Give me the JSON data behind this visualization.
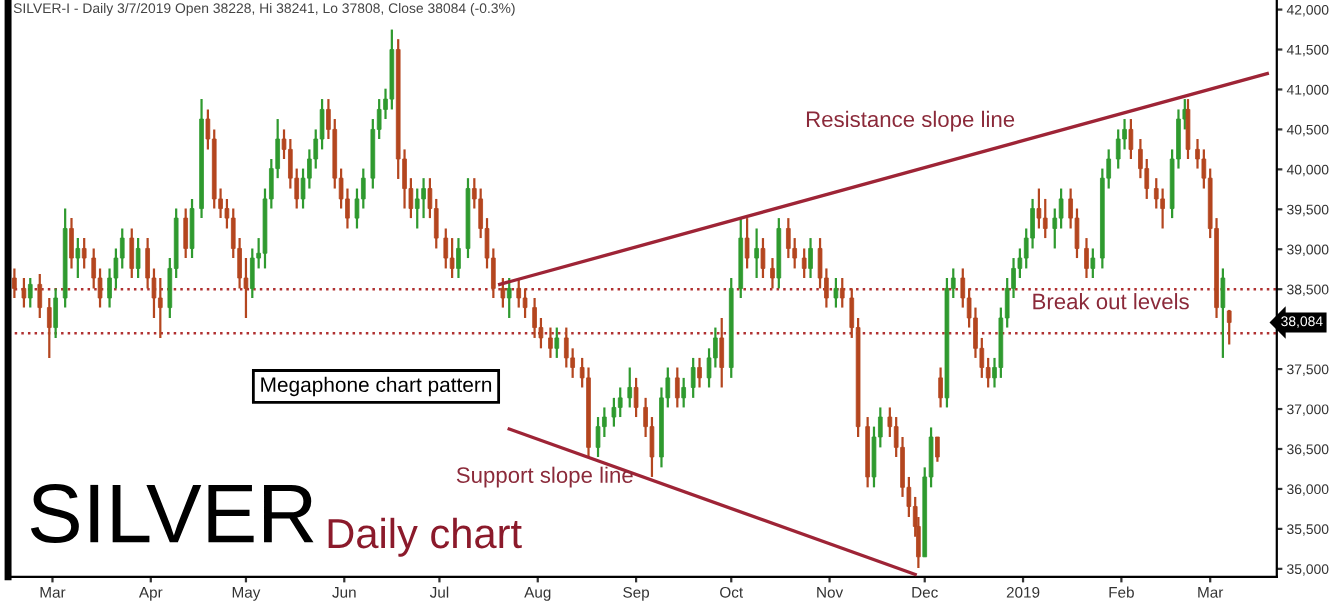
{
  "chart_data": {
    "type": "candlestick",
    "title": "SILVER",
    "subtitle": "Daily chart",
    "x": [
      "2018-02-17",
      "2018-02-20",
      "2018-02-22",
      "2018-02-25",
      "2018-02-28",
      "2018-03-02",
      "2018-03-05",
      "2018-03-07",
      "2018-03-09",
      "2018-03-11",
      "2018-03-14",
      "2018-03-16",
      "2018-03-19",
      "2018-03-21",
      "2018-03-23",
      "2018-03-26",
      "2018-03-28",
      "2018-03-31",
      "2018-04-02",
      "2018-04-04",
      "2018-04-07",
      "2018-04-09",
      "2018-04-12",
      "2018-04-14",
      "2018-04-17",
      "2018-04-19",
      "2018-04-21",
      "2018-04-23",
      "2018-04-25",
      "2018-04-27",
      "2018-04-29",
      "2018-05-01",
      "2018-05-03",
      "2018-05-05",
      "2018-05-07",
      "2018-05-09",
      "2018-05-11",
      "2018-05-13",
      "2018-05-15",
      "2018-05-17",
      "2018-05-19",
      "2018-05-21",
      "2018-05-23",
      "2018-05-25",
      "2018-05-27",
      "2018-05-29",
      "2018-05-31",
      "2018-06-02",
      "2018-06-05",
      "2018-06-07",
      "2018-06-10",
      "2018-06-12",
      "2018-06-14",
      "2018-06-16",
      "2018-06-18",
      "2018-06-20",
      "2018-06-22",
      "2018-06-24",
      "2018-06-26",
      "2018-06-28",
      "2018-06-30",
      "2018-07-03",
      "2018-07-05",
      "2018-07-07",
      "2018-07-10",
      "2018-07-12",
      "2018-07-14",
      "2018-07-16",
      "2018-07-18",
      "2018-07-21",
      "2018-07-23",
      "2018-07-26",
      "2018-07-28",
      "2018-07-31",
      "2018-08-02",
      "2018-08-05",
      "2018-08-07",
      "2018-08-10",
      "2018-08-12",
      "2018-08-15",
      "2018-08-17",
      "2018-08-20",
      "2018-08-22",
      "2018-08-25",
      "2018-08-27",
      "2018-08-30",
      "2018-09-01",
      "2018-09-04",
      "2018-09-06",
      "2018-09-09",
      "2018-09-11",
      "2018-09-14",
      "2018-09-16",
      "2018-09-19",
      "2018-09-21",
      "2018-09-24",
      "2018-09-26",
      "2018-09-28",
      "2018-10-01",
      "2018-10-04",
      "2018-10-06",
      "2018-10-09",
      "2018-10-11",
      "2018-10-14",
      "2018-10-16",
      "2018-10-19",
      "2018-10-21",
      "2018-10-24",
      "2018-10-26",
      "2018-10-29",
      "2018-10-31",
      "2018-11-03",
      "2018-11-05",
      "2018-11-08",
      "2018-11-10",
      "2018-11-13",
      "2018-11-15",
      "2018-11-17",
      "2018-11-20",
      "2018-11-22",
      "2018-11-24",
      "2018-11-26",
      "2018-11-28",
      "2018-11-29",
      "2018-12-01",
      "2018-12-03",
      "2018-12-05",
      "2018-12-06",
      "2018-12-08",
      "2018-12-10",
      "2018-12-13",
      "2018-12-15",
      "2018-12-17",
      "2018-12-19",
      "2018-12-21",
      "2018-12-23",
      "2018-12-25",
      "2018-12-27",
      "2018-12-29",
      "2018-12-31",
      "2019-01-02",
      "2019-01-04",
      "2019-01-06",
      "2019-01-08",
      "2019-01-11",
      "2019-01-13",
      "2019-01-16",
      "2019-01-18",
      "2019-01-21",
      "2019-01-23",
      "2019-01-26",
      "2019-01-28",
      "2019-01-31",
      "2019-02-02",
      "2019-02-04",
      "2019-02-07",
      "2019-02-09",
      "2019-02-12",
      "2019-02-14",
      "2019-02-17",
      "2019-02-19",
      "2019-02-21",
      "2019-02-22",
      "2019-02-25",
      "2019-02-27",
      "2019-03-01",
      "2019-03-03",
      "2019-03-05",
      "2019-03-07"
    ],
    "ohlc": [
      [
        38640,
        38760,
        38390,
        38510
      ],
      [
        38510,
        38640,
        38270,
        38390
      ],
      [
        38390,
        38640,
        38270,
        38560
      ],
      [
        38560,
        38690,
        38140,
        38270
      ],
      [
        38270,
        38390,
        37640,
        38020
      ],
      [
        38020,
        38510,
        37890,
        38390
      ],
      [
        38390,
        39510,
        38270,
        39260
      ],
      [
        39260,
        39390,
        38760,
        38890
      ],
      [
        38890,
        39140,
        38640,
        39010
      ],
      [
        39010,
        39140,
        38760,
        38890
      ],
      [
        38890,
        39010,
        38510,
        38640
      ],
      [
        38640,
        38760,
        38270,
        38390
      ],
      [
        38390,
        38760,
        38270,
        38640
      ],
      [
        38640,
        39010,
        38510,
        38890
      ],
      [
        38890,
        39260,
        38760,
        39140
      ],
      [
        39140,
        39260,
        38640,
        38760
      ],
      [
        38760,
        39140,
        38640,
        39010
      ],
      [
        39010,
        39140,
        38510,
        38640
      ],
      [
        38640,
        38760,
        38140,
        38390
      ],
      [
        38390,
        38640,
        37890,
        38270
      ],
      [
        38270,
        38890,
        38140,
        38760
      ],
      [
        38760,
        39510,
        38640,
        39390
      ],
      [
        39390,
        39510,
        38890,
        39010
      ],
      [
        39010,
        39630,
        38890,
        39510
      ],
      [
        39510,
        40880,
        39390,
        40630
      ],
      [
        40630,
        40750,
        40250,
        40380
      ],
      [
        40380,
        40500,
        39510,
        39630
      ],
      [
        39630,
        39760,
        39390,
        39510
      ],
      [
        39510,
        39630,
        39260,
        39390
      ],
      [
        39390,
        39510,
        38890,
        39010
      ],
      [
        39010,
        39140,
        38510,
        38640
      ],
      [
        38640,
        38890,
        38140,
        38510
      ],
      [
        38510,
        39010,
        38390,
        38890
      ],
      [
        38890,
        39140,
        38760,
        38950
      ],
      [
        38950,
        39760,
        38760,
        39630
      ],
      [
        39630,
        40130,
        39510,
        40010
      ],
      [
        40010,
        40630,
        39890,
        40380
      ],
      [
        40380,
        40500,
        40130,
        40250
      ],
      [
        40250,
        40380,
        39760,
        39890
      ],
      [
        39890,
        40010,
        39510,
        39630
      ],
      [
        39630,
        40010,
        39510,
        39890
      ],
      [
        39890,
        40250,
        39760,
        40130
      ],
      [
        40130,
        40500,
        40010,
        40380
      ],
      [
        40380,
        40880,
        40250,
        40750
      ],
      [
        40750,
        40880,
        40380,
        40500
      ],
      [
        40500,
        40630,
        39760,
        39890
      ],
      [
        39890,
        40010,
        39510,
        39630
      ],
      [
        39630,
        39760,
        39260,
        39390
      ],
      [
        39390,
        39760,
        39260,
        39630
      ],
      [
        39630,
        40010,
        39510,
        39890
      ],
      [
        39890,
        40630,
        39760,
        40500
      ],
      [
        40500,
        40880,
        40380,
        40750
      ],
      [
        40750,
        41010,
        40630,
        40880
      ],
      [
        40880,
        41750,
        40750,
        41500
      ],
      [
        41500,
        41630,
        39880,
        40130
      ],
      [
        40130,
        40250,
        39510,
        39760
      ],
      [
        39760,
        39890,
        39390,
        39510
      ],
      [
        39510,
        39760,
        39260,
        39630
      ],
      [
        39630,
        39890,
        39390,
        39760
      ],
      [
        39760,
        39890,
        39390,
        39510
      ],
      [
        39510,
        39630,
        39010,
        39140
      ],
      [
        39140,
        39260,
        38760,
        38890
      ],
      [
        38890,
        39140,
        38640,
        38760
      ],
      [
        38760,
        39140,
        38640,
        39010
      ],
      [
        39010,
        39890,
        38890,
        39760
      ],
      [
        39760,
        39890,
        39510,
        39630
      ],
      [
        39630,
        39760,
        39140,
        39260
      ],
      [
        39260,
        39390,
        38760,
        38890
      ],
      [
        38890,
        39010,
        38390,
        38510
      ],
      [
        38510,
        38640,
        38270,
        38390
      ],
      [
        38390,
        38640,
        38140,
        38510
      ],
      [
        38510,
        38640,
        38270,
        38390
      ],
      [
        38390,
        38510,
        38140,
        38270
      ],
      [
        38270,
        38390,
        37890,
        38020
      ],
      [
        38020,
        38140,
        37760,
        37890
      ],
      [
        37890,
        38020,
        37640,
        37760
      ],
      [
        37760,
        38020,
        37640,
        37890
      ],
      [
        37890,
        38020,
        37520,
        37640
      ],
      [
        37640,
        37760,
        37390,
        37520
      ],
      [
        37520,
        37640,
        37270,
        37390
      ],
      [
        37390,
        37520,
        36400,
        36520
      ],
      [
        36520,
        36900,
        36400,
        36780
      ],
      [
        36780,
        37020,
        36650,
        36900
      ],
      [
        36900,
        37140,
        36780,
        37020
      ],
      [
        37020,
        37270,
        36900,
        37140
      ],
      [
        37140,
        37520,
        37020,
        37270
      ],
      [
        37270,
        37390,
        36900,
        37020
      ],
      [
        37020,
        37140,
        36650,
        36780
      ],
      [
        36780,
        36900,
        36150,
        36400
      ],
      [
        36400,
        37270,
        36270,
        37140
      ],
      [
        37140,
        37520,
        37020,
        37390
      ],
      [
        37390,
        37520,
        37020,
        37140
      ],
      [
        37140,
        37390,
        37020,
        37270
      ],
      [
        37270,
        37640,
        37140,
        37520
      ],
      [
        37520,
        37640,
        37270,
        37390
      ],
      [
        37390,
        37760,
        37270,
        37640
      ],
      [
        37640,
        38020,
        37520,
        37890
      ],
      [
        37890,
        38140,
        37270,
        37520
      ],
      [
        37520,
        38640,
        37390,
        38510
      ],
      [
        38510,
        39390,
        38390,
        39140
      ],
      [
        39140,
        39390,
        38760,
        38890
      ],
      [
        38890,
        39260,
        38640,
        39010
      ],
      [
        39010,
        39140,
        38640,
        38760
      ],
      [
        38760,
        38890,
        38510,
        38640
      ],
      [
        38640,
        39390,
        38510,
        39260
      ],
      [
        39260,
        39390,
        38890,
        39010
      ],
      [
        39010,
        39140,
        38760,
        38890
      ],
      [
        38890,
        39010,
        38640,
        38760
      ],
      [
        38760,
        39140,
        38640,
        39010
      ],
      [
        39010,
        39140,
        38510,
        38640
      ],
      [
        38640,
        38760,
        38270,
        38390
      ],
      [
        38390,
        38640,
        38270,
        38510
      ],
      [
        38510,
        38640,
        38270,
        38390
      ],
      [
        38390,
        38510,
        37890,
        38020
      ],
      [
        38020,
        38140,
        36650,
        36780
      ],
      [
        36780,
        36900,
        36020,
        36150
      ],
      [
        36150,
        36780,
        36020,
        36650
      ],
      [
        36650,
        37020,
        36520,
        36900
      ],
      [
        36900,
        37020,
        36650,
        36780
      ],
      [
        36780,
        36900,
        36400,
        36520
      ],
      [
        36520,
        36650,
        35900,
        36020
      ],
      [
        36020,
        36150,
        35650,
        35780
      ],
      [
        35780,
        35900,
        35400,
        35530
      ],
      [
        35530,
        35650,
        35010,
        35150
      ],
      [
        35150,
        36270,
        35150,
        36150
      ],
      [
        36150,
        36770,
        36020,
        36650
      ],
      [
        36650,
        36650,
        36340,
        36400
      ],
      [
        37390,
        37520,
        37020,
        37140
      ],
      [
        37140,
        38640,
        37020,
        38510
      ],
      [
        38510,
        38760,
        38390,
        38640
      ],
      [
        38640,
        38760,
        38270,
        38390
      ],
      [
        38390,
        38510,
        38020,
        38140
      ],
      [
        38140,
        38270,
        37640,
        37760
      ],
      [
        37760,
        37890,
        37390,
        37520
      ],
      [
        37520,
        37640,
        37270,
        37390
      ],
      [
        37390,
        37640,
        37270,
        37520
      ],
      [
        37520,
        38270,
        37390,
        38140
      ],
      [
        38140,
        38640,
        38020,
        38510
      ],
      [
        38510,
        38890,
        38390,
        38760
      ],
      [
        38760,
        39010,
        38640,
        38890
      ],
      [
        38890,
        39260,
        38760,
        39140
      ],
      [
        39140,
        39630,
        39010,
        39510
      ],
      [
        39510,
        39760,
        39260,
        39390
      ],
      [
        39390,
        39630,
        39140,
        39260
      ],
      [
        39260,
        39510,
        39010,
        39390
      ],
      [
        39390,
        39760,
        39260,
        39630
      ],
      [
        39630,
        39760,
        39260,
        39390
      ],
      [
        39390,
        39510,
        38890,
        39010
      ],
      [
        39010,
        39140,
        38640,
        38760
      ],
      [
        38760,
        39010,
        38640,
        38890
      ],
      [
        38890,
        40010,
        38760,
        39890
      ],
      [
        39890,
        40250,
        39760,
        40130
      ],
      [
        40130,
        40500,
        40010,
        40380
      ],
      [
        40380,
        40630,
        40250,
        40500
      ],
      [
        40500,
        40630,
        40130,
        40250
      ],
      [
        40250,
        40380,
        39890,
        40010
      ],
      [
        40010,
        40130,
        39630,
        39760
      ],
      [
        39760,
        39890,
        39510,
        39630
      ],
      [
        39630,
        39760,
        39260,
        39510
      ],
      [
        39510,
        40250,
        39390,
        40130
      ],
      [
        40130,
        40750,
        40010,
        40630
      ],
      [
        40630,
        40880,
        40500,
        40750
      ],
      [
        40750,
        40880,
        40130,
        40250
      ],
      [
        40250,
        40380,
        40010,
        40130
      ],
      [
        40130,
        40250,
        39760,
        39890
      ],
      [
        39890,
        40010,
        39140,
        39260
      ],
      [
        39260,
        39390,
        38140,
        38270
      ],
      [
        38270,
        38760,
        37640,
        38640
      ],
      [
        38228,
        38241,
        37808,
        38084
      ]
    ],
    "colors": [
      "#b4461f",
      "#b4461f",
      "#2f9a2f",
      "#b4461f",
      "#b4461f",
      "#2f9a2f",
      "#2f9a2f",
      "#b4461f",
      "#2f9a2f",
      "#b4461f",
      "#b4461f",
      "#b4461f",
      "#2f9a2f",
      "#2f9a2f",
      "#2f9a2f",
      "#b4461f",
      "#2f9a2f",
      "#b4461f",
      "#b4461f",
      "#b4461f",
      "#2f9a2f",
      "#2f9a2f",
      "#b4461f",
      "#2f9a2f",
      "#2f9a2f",
      "#b4461f",
      "#b4461f",
      "#b4461f",
      "#b4461f",
      "#b4461f",
      "#b4461f",
      "#b4461f",
      "#2f9a2f",
      "#2f9a2f",
      "#2f9a2f",
      "#2f9a2f",
      "#2f9a2f",
      "#b4461f",
      "#b4461f",
      "#b4461f",
      "#2f9a2f",
      "#2f9a2f",
      "#2f9a2f",
      "#2f9a2f",
      "#b4461f",
      "#b4461f",
      "#b4461f",
      "#b4461f",
      "#2f9a2f",
      "#2f9a2f",
      "#2f9a2f",
      "#2f9a2f",
      "#2f9a2f",
      "#2f9a2f",
      "#b4461f",
      "#b4461f",
      "#b4461f",
      "#2f9a2f",
      "#2f9a2f",
      "#b4461f",
      "#b4461f",
      "#b4461f",
      "#b4461f",
      "#2f9a2f",
      "#2f9a2f",
      "#b4461f",
      "#b4461f",
      "#b4461f",
      "#b4461f",
      "#b4461f",
      "#2f9a2f",
      "#b4461f",
      "#b4461f",
      "#b4461f",
      "#b4461f",
      "#b4461f",
      "#2f9a2f",
      "#b4461f",
      "#b4461f",
      "#b4461f",
      "#b4461f",
      "#2f9a2f",
      "#2f9a2f",
      "#2f9a2f",
      "#2f9a2f",
      "#2f9a2f",
      "#b4461f",
      "#b4461f",
      "#b4461f",
      "#2f9a2f",
      "#2f9a2f",
      "#b4461f",
      "#2f9a2f",
      "#2f9a2f",
      "#b4461f",
      "#2f9a2f",
      "#2f9a2f",
      "#b4461f",
      "#2f9a2f",
      "#2f9a2f",
      "#b4461f",
      "#2f9a2f",
      "#b4461f",
      "#b4461f",
      "#2f9a2f",
      "#b4461f",
      "#b4461f",
      "#b4461f",
      "#2f9a2f",
      "#b4461f",
      "#b4461f",
      "#2f9a2f",
      "#b4461f",
      "#b4461f",
      "#b4461f",
      "#b4461f",
      "#2f9a2f",
      "#2f9a2f",
      "#b4461f",
      "#b4461f",
      "#b4461f",
      "#b4461f",
      "#b4461f",
      "#b4461f",
      "#2f9a2f",
      "#2f9a2f",
      "#b4461f",
      "#b4461f",
      "#2f9a2f",
      "#2f9a2f",
      "#b4461f",
      "#b4461f",
      "#b4461f",
      "#b4461f",
      "#b4461f",
      "#2f9a2f",
      "#2f9a2f",
      "#2f9a2f",
      "#2f9a2f",
      "#2f9a2f",
      "#2f9a2f",
      "#2f9a2f",
      "#b4461f",
      "#b4461f",
      "#2f9a2f",
      "#2f9a2f",
      "#b4461f",
      "#b4461f",
      "#b4461f",
      "#2f9a2f",
      "#2f9a2f",
      "#2f9a2f",
      "#2f9a2f",
      "#2f9a2f",
      "#b4461f",
      "#b4461f",
      "#b4461f",
      "#b4461f",
      "#b4461f",
      "#2f9a2f",
      "#2f9a2f",
      "#2f9a2f",
      "#b4461f",
      "#b4461f",
      "#b4461f",
      "#b4461f",
      "#b4461f",
      "#2f9a2f",
      "#b4461f"
    ],
    "series": [
      {
        "type": "line",
        "color": "#9e2436",
        "x": [
          "2018-07-20",
          "2019-03-19"
        ],
        "values": [
          38560,
          41200
        ]
      },
      {
        "type": "line",
        "color": "#9e2436",
        "x": [
          "2018-07-23",
          "2018-11-28"
        ],
        "values": [
          36750,
          34930
        ]
      }
    ],
    "ref_lines": [
      {
        "axis": "y",
        "value": 38500,
        "color": "#b03030",
        "line_style": "dotted"
      },
      {
        "axis": "y",
        "value": 37950,
        "color": "#b03030",
        "line_style": "dotted"
      }
    ],
    "annotations": [
      "SILVER-I - Daily 3/7/2019 Open 38228, Hi 38241, Lo 37808, Close 38084 (-0.3%)",
      "Resistance slope line",
      "Break out levels",
      "Support slope line",
      "Megaphone chart pattern",
      "38,084"
    ],
    "xlim": [
      "2018-02-15",
      "2019-03-22"
    ],
    "xticks": [
      {
        "value": "2018-03-01",
        "label": "Mar"
      },
      {
        "value": "2018-04-01",
        "label": "Apr"
      },
      {
        "value": "2018-05-01",
        "label": "May"
      },
      {
        "value": "2018-06-01",
        "label": "Jun"
      },
      {
        "value": "2018-07-01",
        "label": "Jul"
      },
      {
        "value": "2018-08-01",
        "label": "Aug"
      },
      {
        "value": "2018-09-01",
        "label": "Sep"
      },
      {
        "value": "2018-10-01",
        "label": "Oct"
      },
      {
        "value": "2018-11-01",
        "label": "Nov"
      },
      {
        "value": "2018-12-01",
        "label": "Dec"
      },
      {
        "value": "2019-01-01",
        "label": "2019"
      },
      {
        "value": "2019-02-01",
        "label": "Feb"
      },
      {
        "value": "2019-03-01",
        "label": "Mar"
      }
    ],
    "ylim": [
      34900,
      42120
    ],
    "yticks": [
      {
        "value": 35000,
        "label": "35,000"
      },
      {
        "value": 35500,
        "label": "35,500"
      },
      {
        "value": 36000,
        "label": "36,000"
      },
      {
        "value": 36500,
        "label": "36,500"
      },
      {
        "value": 37000,
        "label": "37,000"
      },
      {
        "value": 37500,
        "label": "37,500"
      },
      {
        "value": 38000,
        "label": null
      },
      {
        "value": 38500,
        "label": "38,500"
      },
      {
        "value": 39000,
        "label": "39,000"
      },
      {
        "value": 39500,
        "label": "39,500"
      },
      {
        "value": 40000,
        "label": "40,000"
      },
      {
        "value": 40500,
        "label": "40,500"
      },
      {
        "value": 41000,
        "label": "41,000"
      },
      {
        "value": 41500,
        "label": "41,500"
      },
      {
        "value": 42000,
        "label": "42,000"
      }
    ],
    "grid": false,
    "legend": false
  }
}
